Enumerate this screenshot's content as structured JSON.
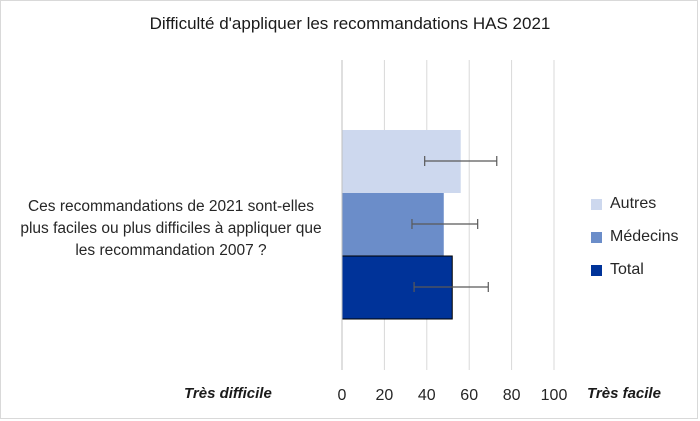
{
  "chart_data": {
    "type": "bar",
    "orientation": "horizontal",
    "title": "Difficulté d'appliquer les recommandations HAS 2021",
    "category_lines": [
      "Ces recommandations de 2021 sont-elles",
      "plus faciles ou plus difficiles à appliquer que",
      "les recommandation 2007 ?"
    ],
    "xlim": [
      0,
      100
    ],
    "xticks": [
      "0",
      "20",
      "40",
      "60",
      "80",
      "100"
    ],
    "x_left_label": "Très difficile",
    "x_right_label": "Très facile",
    "grid": "vertical",
    "legend_position": "right",
    "series": [
      {
        "name": "Autres",
        "value": 56,
        "error": [
          39,
          73
        ],
        "color": "#cdd8ee"
      },
      {
        "name": "Médecins",
        "value": 48,
        "error": [
          33,
          64
        ],
        "color": "#6b8dc9"
      },
      {
        "name": "Total",
        "value": 52,
        "error": [
          34,
          69
        ],
        "color": "#003399"
      }
    ]
  }
}
